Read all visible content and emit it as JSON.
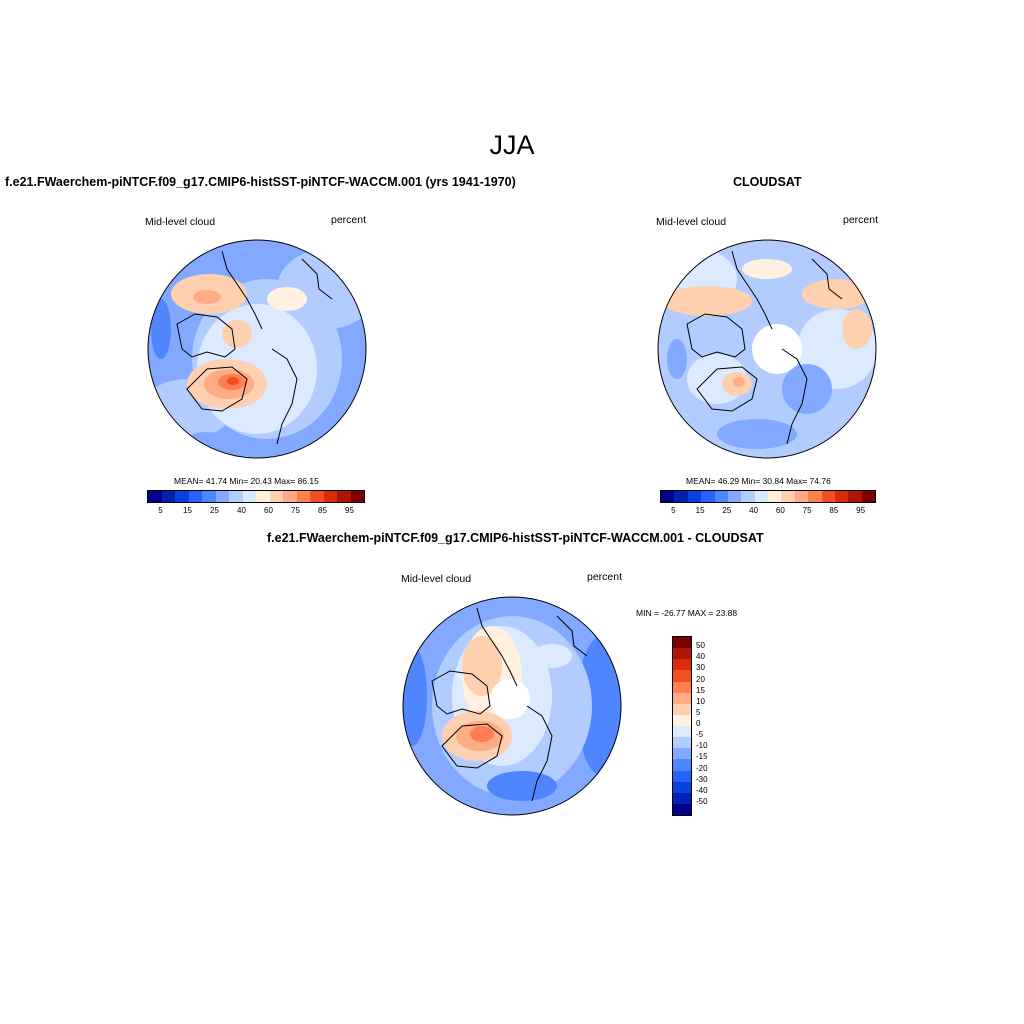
{
  "title": "JJA",
  "panels": [
    {
      "id": "model",
      "title": "f.e21.FWaerchem-piNTCF.f09_g17.CMIP6-histSST-piNTCF-WACCM.001 (yrs 1941-1970)",
      "variable": "Mid-level cloud",
      "units": "percent",
      "stats": "MEAN=  41.74  Min=  20.43  Max=  86.15"
    },
    {
      "id": "obs",
      "title": "CLOUDSAT",
      "variable": "Mid-level cloud",
      "units": "percent",
      "stats": "MEAN=  46.29  Min=  30.84  Max=  74.76"
    },
    {
      "id": "diff",
      "title": "f.e21.FWaerchem-piNTCF.f09_g17.CMIP6-histSST-piNTCF-WACCM.001 - CLOUDSAT",
      "variable": "Mid-level cloud",
      "units": "percent",
      "stats": "MIN = -26.77 MAX =  23.88"
    }
  ],
  "colorbar_abs": {
    "colors": [
      "#00008c",
      "#0022b4",
      "#0a3fe0",
      "#2563ff",
      "#4f86ff",
      "#82a8ff",
      "#b2ccff",
      "#dceaff",
      "#fff0e0",
      "#ffd0b0",
      "#ffab85",
      "#ff7e52",
      "#f4501f",
      "#d82d0a",
      "#b01404",
      "#7c0000"
    ],
    "tick_labels": [
      "5",
      "15",
      "25",
      "40",
      "60",
      "75",
      "85",
      "95"
    ]
  },
  "colorbar_diff": {
    "colors": [
      "#7c0000",
      "#b01404",
      "#d82d0a",
      "#f4501f",
      "#ff7e52",
      "#ffab85",
      "#ffd0b0",
      "#fff0e0",
      "#dceaff",
      "#b2ccff",
      "#82a8ff",
      "#4f86ff",
      "#2563ff",
      "#0a3fe0",
      "#0022b4",
      "#00008c"
    ],
    "tick_labels": [
      "50",
      "40",
      "30",
      "20",
      "15",
      "10",
      "5",
      "0",
      "-5",
      "-10",
      "-15",
      "-20",
      "-30",
      "-40",
      "-50"
    ]
  }
}
